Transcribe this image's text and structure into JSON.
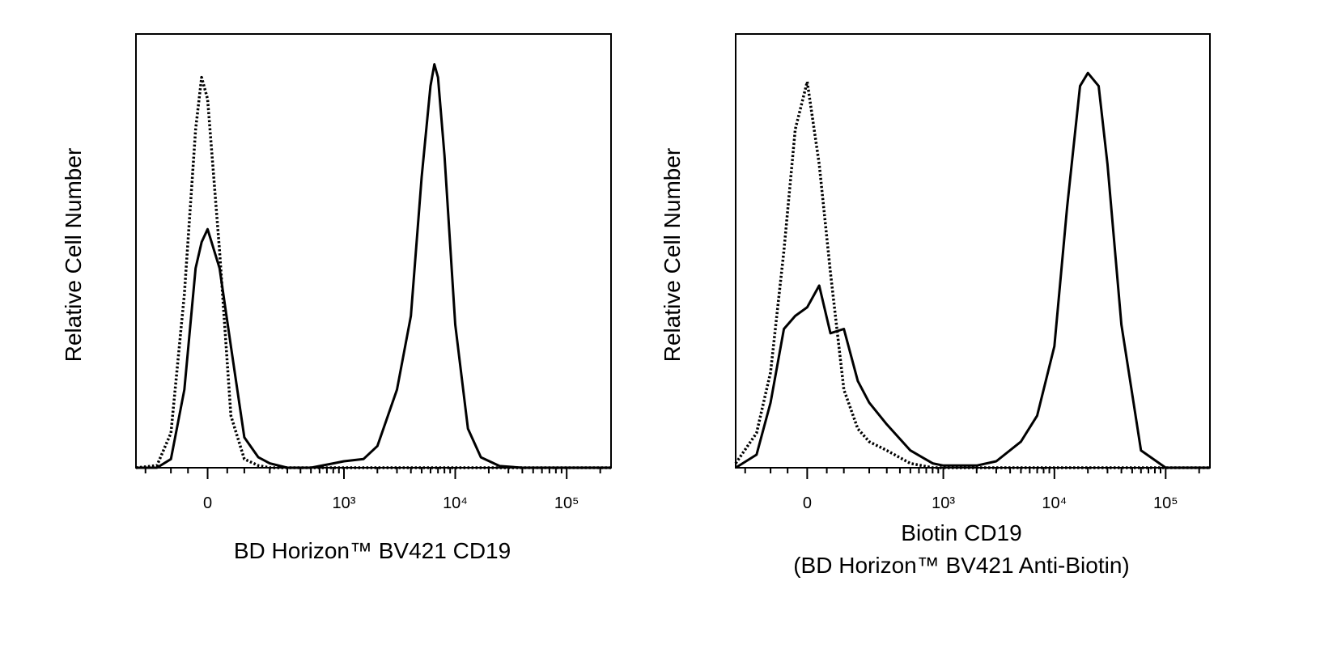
{
  "chart_data": [
    {
      "type": "line",
      "xlabel": [
        "BD Horizon™ BV421 CD19"
      ],
      "ylabel": "Relative Cell Number",
      "xscale": "biexponential",
      "xlim": [
        -250,
        250000
      ],
      "ylim": [
        0,
        100
      ],
      "xticks": [
        0,
        {
          "value": 1000,
          "label": "10³"
        },
        {
          "value": 10000,
          "label": "10⁴"
        },
        {
          "value": 100000,
          "label": "10⁵"
        }
      ],
      "xminorticks": [
        -200,
        -100,
        -50,
        50,
        100,
        200,
        300,
        400,
        500,
        600,
        700,
        800,
        900,
        2000,
        3000,
        4000,
        5000,
        6000,
        7000,
        8000,
        9000,
        20000,
        30000,
        40000,
        50000,
        60000,
        70000,
        80000,
        90000,
        200000
      ],
      "x": [
        -250,
        -150,
        -100,
        -60,
        -30,
        -15,
        0,
        30,
        60,
        100,
        150,
        200,
        300,
        500,
        800,
        1000,
        1500,
        2000,
        3000,
        4000,
        5000,
        6000,
        6500,
        7000,
        8000,
        10000,
        13000,
        17000,
        25000,
        40000,
        100000,
        250000
      ],
      "series": [
        {
          "color": "#000000",
          "style": "solid",
          "values": [
            0,
            0,
            2,
            18,
            46,
            52,
            55,
            46,
            28,
            7,
            2.4,
            1,
            0,
            0,
            1,
            1.5,
            2,
            5,
            18,
            35,
            67,
            88,
            93,
            90,
            72,
            33,
            9,
            2.4,
            0.4,
            0,
            0,
            0
          ]
        },
        {
          "color": "#000000",
          "style": "dotted",
          "values": [
            0,
            0.5,
            8,
            40,
            78,
            90,
            85,
            50,
            12,
            2,
            0.5,
            0,
            0,
            0,
            0,
            0,
            0,
            0,
            0,
            0,
            0,
            0,
            0,
            0,
            0,
            0,
            0,
            0,
            0,
            0,
            0,
            0
          ]
        }
      ]
    },
    {
      "type": "line",
      "xlabel": [
        "Biotin CD19",
        "(BD Horizon™ BV421 Anti-Biotin)"
      ],
      "ylabel": "Relative Cell Number",
      "xscale": "biexponential",
      "xlim": [
        -250,
        250000
      ],
      "ylim": [
        0,
        100
      ],
      "xticks": [
        0,
        {
          "value": 1000,
          "label": "10³"
        },
        {
          "value": 10000,
          "label": "10⁴"
        },
        {
          "value": 100000,
          "label": "10⁵"
        }
      ],
      "xminorticks": [
        -200,
        -100,
        -50,
        50,
        100,
        200,
        300,
        400,
        500,
        600,
        700,
        800,
        900,
        2000,
        3000,
        4000,
        5000,
        6000,
        7000,
        8000,
        9000,
        20000,
        30000,
        40000,
        50000,
        60000,
        70000,
        80000,
        90000,
        200000
      ],
      "x": [
        -250,
        -150,
        -100,
        -60,
        -30,
        0,
        30,
        60,
        100,
        150,
        200,
        300,
        500,
        800,
        1000,
        2000,
        3000,
        5000,
        7000,
        10000,
        13000,
        17000,
        20000,
        25000,
        30000,
        40000,
        60000,
        100000,
        250000
      ],
      "series": [
        {
          "color": "#000000",
          "style": "solid",
          "values": [
            0,
            3,
            15,
            32,
            35,
            37,
            42,
            31,
            32,
            20,
            15,
            10,
            4,
            1,
            0.5,
            0.5,
            1.5,
            6,
            12,
            28,
            60,
            88,
            91,
            88,
            70,
            33,
            4,
            0,
            0
          ]
        },
        {
          "color": "#000000",
          "style": "dotted",
          "values": [
            1,
            8,
            22,
            50,
            78,
            89,
            70,
            45,
            18,
            9,
            6,
            4,
            1,
            0,
            0,
            0,
            0,
            0,
            0,
            0,
            0,
            0,
            0,
            0,
            0,
            0,
            0,
            0,
            0
          ]
        }
      ]
    }
  ]
}
